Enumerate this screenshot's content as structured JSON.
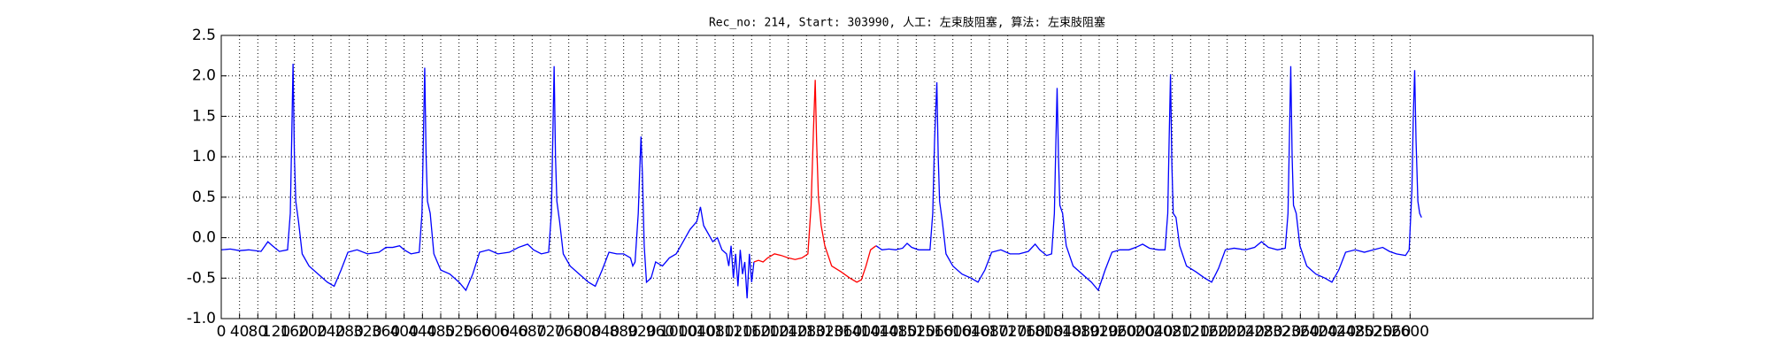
{
  "chart_data": {
    "type": "line",
    "title": "Rec_no: 214, Start: 303990, 人工: 左束肢阻塞, 算法: 左束肢阻塞",
    "xlim": [
      0,
      3000
    ],
    "ylim": [
      -1.0,
      2.5
    ],
    "grid": true,
    "xticks": [
      0,
      40,
      80,
      120,
      160,
      200,
      240,
      280,
      320,
      360,
      400,
      440,
      480,
      520,
      560,
      600,
      640,
      680,
      720,
      760,
      800,
      840,
      880,
      920,
      960,
      1000,
      1040,
      1080,
      1120,
      1160,
      1200,
      1240,
      1280,
      1320,
      1360,
      1400,
      1440,
      1480,
      1520,
      1560,
      1600,
      1640,
      1680,
      1720,
      1760,
      1800,
      1840,
      1880,
      1920,
      1960,
      2000,
      2040,
      2080,
      2120,
      2160,
      2200,
      2240,
      2280,
      2320,
      2360,
      2400,
      2440,
      2480,
      2520,
      2560,
      2600
    ],
    "yticks": [
      {
        "value": -1.0,
        "label": "-1.0"
      },
      -0.5,
      {
        "value": 0.0,
        "label": "0.0"
      },
      0.5,
      {
        "value": 1.0,
        "label": "1.0"
      },
      1.5,
      {
        "value": 2.0,
        "label": "2.0"
      },
      2.5
    ],
    "series": [
      {
        "color": "#0000ff",
        "x": [
          0,
          20,
          40,
          60,
          87,
          102,
          112,
          127,
          145,
          151,
          154,
          157,
          160,
          163,
          169,
          177,
          192,
          212,
          232,
          247,
          262,
          277,
          297,
          320,
          345,
          360,
          375,
          390,
          400,
          415,
          433,
          439,
          442,
          445,
          448,
          451,
          457,
          465,
          480,
          500,
          520,
          535,
          550,
          565,
          585,
          605,
          630,
          650,
          660,
          670,
          683,
          700,
          716,
          722,
          725,
          728,
          731,
          734,
          740,
          748,
          763,
          783,
          803,
          818,
          833,
          848,
          865,
          880,
          895,
          900,
          905,
          912,
          915,
          918,
          921,
          925,
          930,
          940,
          950,
          965,
          980,
          995,
          1010,
          1025,
          1040,
          1048,
          1055,
          1065,
          1075,
          1085,
          1095,
          1105,
          1110,
          1115,
          1120,
          1125,
          1130,
          1135,
          1140,
          1145,
          1150,
          1155,
          1160,
          1165,
          1299,
          1432,
          1445,
          1460,
          1475,
          1490,
          1500,
          1510,
          1525,
          1550,
          1556,
          1560,
          1565,
          1568,
          1571,
          1577,
          1585,
          1600,
          1620,
          1640,
          1655,
          1670,
          1685,
          1705,
          1725,
          1745,
          1765,
          1780,
          1790,
          1805,
          1816,
          1822,
          1825,
          1828,
          1831,
          1834,
          1840,
          1848,
          1863,
          1883,
          1903,
          1918,
          1933,
          1948,
          1965,
          1985,
          2000,
          2015,
          2030,
          2050,
          2064,
          2070,
          2073,
          2076,
          2079,
          2082,
          2088,
          2096,
          2111,
          2131,
          2151,
          2166,
          2181,
          2196,
          2215,
          2240,
          2260,
          2275,
          2290,
          2310,
          2327,
          2333,
          2336,
          2339,
          2342,
          2345,
          2351,
          2359,
          2374,
          2394,
          2414,
          2429,
          2444,
          2459,
          2480,
          2500,
          2520,
          2540,
          2555,
          2570,
          2590,
          2598,
          2604,
          2607,
          2610,
          2613,
          2617,
          2621,
          2625
        ],
        "values": [
          -0.15,
          -0.14,
          -0.16,
          -0.15,
          -0.17,
          -0.05,
          -0.1,
          -0.17,
          -0.15,
          0.3,
          1.2,
          2.15,
          1.0,
          0.45,
          0.2,
          -0.2,
          -0.35,
          -0.45,
          -0.55,
          -0.6,
          -0.4,
          -0.18,
          -0.15,
          -0.2,
          -0.18,
          -0.12,
          -0.12,
          -0.1,
          -0.15,
          -0.2,
          -0.18,
          0.3,
          1.2,
          2.1,
          1.0,
          0.45,
          0.3,
          -0.2,
          -0.4,
          -0.45,
          -0.55,
          -0.65,
          -0.45,
          -0.18,
          -0.15,
          -0.2,
          -0.18,
          -0.12,
          -0.1,
          -0.08,
          -0.15,
          -0.2,
          -0.18,
          0.3,
          1.2,
          2.12,
          1.0,
          0.45,
          0.2,
          -0.2,
          -0.35,
          -0.45,
          -0.55,
          -0.6,
          -0.4,
          -0.18,
          -0.2,
          -0.2,
          -0.25,
          -0.35,
          -0.3,
          0.3,
          0.8,
          1.25,
          0.8,
          -0.1,
          -0.55,
          -0.5,
          -0.3,
          -0.35,
          -0.25,
          -0.2,
          -0.05,
          0.1,
          0.2,
          0.38,
          0.15,
          0.05,
          -0.05,
          0.0,
          -0.15,
          -0.2,
          -0.35,
          -0.1,
          -0.5,
          -0.2,
          -0.6,
          -0.15,
          -0.45,
          -0.3,
          -0.75,
          -0.2,
          -0.55,
          -0.3,
          null,
          -0.1,
          -0.15,
          -0.14,
          -0.15,
          -0.13,
          -0.07,
          -0.12,
          -0.15,
          -0.15,
          0.3,
          1.2,
          1.92,
          1.0,
          0.45,
          0.2,
          -0.2,
          -0.35,
          -0.45,
          -0.5,
          -0.55,
          -0.4,
          -0.18,
          -0.15,
          -0.2,
          -0.2,
          -0.17,
          -0.08,
          -0.15,
          -0.22,
          -0.2,
          0.3,
          1.1,
          1.85,
          1.0,
          0.4,
          0.3,
          -0.1,
          -0.35,
          -0.45,
          -0.55,
          -0.65,
          -0.4,
          -0.18,
          -0.15,
          -0.15,
          -0.12,
          -0.08,
          -0.13,
          -0.15,
          -0.15,
          0.3,
          1.2,
          2.02,
          0.9,
          0.3,
          0.25,
          -0.1,
          -0.35,
          -0.42,
          -0.5,
          -0.55,
          -0.38,
          -0.15,
          -0.13,
          -0.15,
          -0.12,
          -0.05,
          -0.12,
          -0.15,
          -0.13,
          0.3,
          1.2,
          2.12,
          1.0,
          0.4,
          0.3,
          -0.1,
          -0.35,
          -0.45,
          -0.5,
          -0.55,
          -0.4,
          -0.18,
          -0.15,
          -0.18,
          -0.15,
          -0.12,
          -0.17,
          -0.2,
          -0.22,
          -0.15,
          0.6,
          1.5,
          2.07,
          1.2,
          0.45,
          0.3,
          0.25
        ]
      },
      {
        "color": "#ff0000",
        "x": [
          1165,
          1175,
          1185,
          1195,
          1210,
          1225,
          1240,
          1255,
          1270,
          1283,
          1290,
          1295,
          1299,
          1302,
          1306,
          1312,
          1320,
          1335,
          1355,
          1375,
          1390,
          1400,
          1410,
          1420,
          1432
        ],
        "values": [
          -0.3,
          -0.28,
          -0.3,
          -0.25,
          -0.2,
          -0.22,
          -0.25,
          -0.27,
          -0.25,
          -0.2,
          0.4,
          1.3,
          1.95,
          1.2,
          0.5,
          0.15,
          -0.1,
          -0.35,
          -0.42,
          -0.5,
          -0.55,
          -0.52,
          -0.35,
          -0.15,
          -0.1
        ]
      }
    ]
  }
}
